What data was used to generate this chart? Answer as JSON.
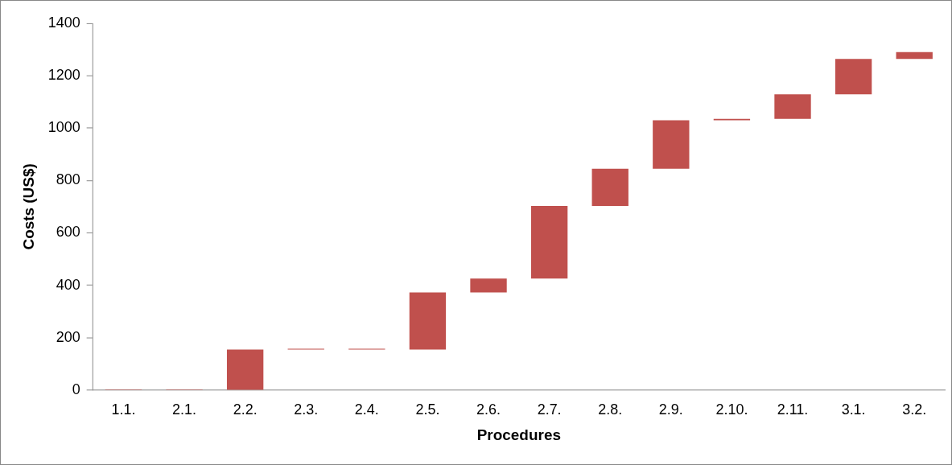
{
  "chart_data": {
    "type": "bar",
    "xlabel": "Procedures",
    "ylabel": "Costs (US$)",
    "categories": [
      "1.1.",
      "2.1.",
      "2.2.",
      "2.3.",
      "2.4.",
      "2.5.",
      "2.6.",
      "2.7.",
      "2.8.",
      "2.9.",
      "2.10.",
      "2.11.",
      "3.1.",
      "3.2."
    ],
    "base": [
      0,
      0,
      0,
      155,
      155,
      155,
      373,
      426,
      703,
      845,
      1030,
      1035,
      1129,
      1264
    ],
    "values": [
      0,
      0,
      155,
      0,
      0,
      218,
      53,
      277,
      142,
      185,
      5,
      94,
      135,
      26
    ],
    "color": "#c0504d",
    "ylim": [
      0,
      1400
    ],
    "yticks": [
      0,
      200,
      400,
      600,
      800,
      1000,
      1200,
      1400
    ],
    "grid": false,
    "legend": false
  }
}
